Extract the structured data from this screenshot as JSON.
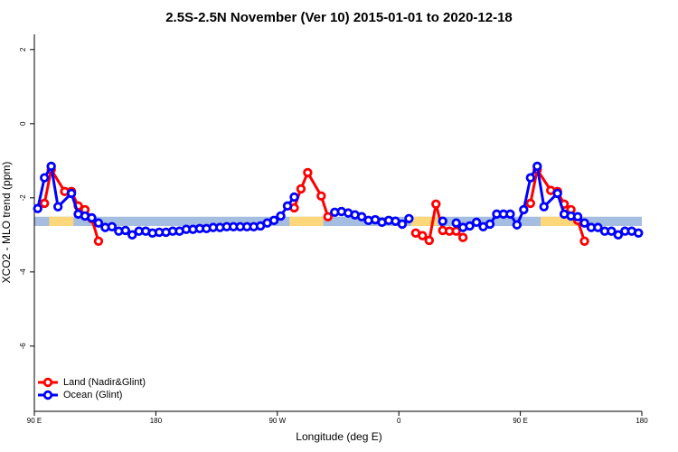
{
  "chart_data": {
    "type": "line",
    "title": "2.5S-2.5N November (Ver 10)   2015-01-01 to 2020-12-18",
    "x_label": "Longitude (deg E)",
    "y_label": "XCO2 - MLO trend (ppm)",
    "xlim": [
      90,
      540
    ],
    "ylim": [
      -7.76,
      2.41
    ],
    "xticks": [
      {
        "value": 90,
        "label": "90 E"
      },
      {
        "value": 180,
        "label": "180"
      },
      {
        "value": 270,
        "label": "90 W"
      },
      {
        "value": 360,
        "label": "0"
      },
      {
        "value": 450,
        "label": "90 E"
      },
      {
        "value": 540,
        "label": "180"
      }
    ],
    "yticks": [
      -6,
      -4,
      -2,
      0,
      2
    ],
    "legend": "bottom-left",
    "band": {
      "range": [
        -2.51,
        -2.76
      ],
      "color": "#a4bde0",
      "land_color": "#fdd77a",
      "land_segments": [
        [
          101,
          119
        ],
        [
          279,
          304
        ],
        [
          369,
          389
        ],
        [
          465,
          493
        ]
      ]
    },
    "series": [
      {
        "name": "Land (Nadir&Glint)",
        "color": "#ff0000",
        "x": [
          97.5,
          102.5,
          112.5,
          117.5,
          122.5,
          127.5,
          132.5,
          137.5,
          210,
          282.5,
          287.5,
          292.5,
          302.5,
          307.5,
          350,
          372.5,
          377.5,
          382.5,
          387.5,
          392.5,
          397.5,
          402.5,
          407.5,
          440,
          457.5,
          462.5,
          472.5,
          477.5,
          482.5,
          487.5,
          492.5,
          497.5
        ],
        "values": [
          -2.15,
          -1.24,
          -1.83,
          -1.83,
          -2.22,
          -2.32,
          -2.56,
          -3.17,
          null,
          -2.27,
          -1.76,
          -1.32,
          -1.95,
          -2.51,
          null,
          -2.95,
          -3.02,
          -3.15,
          -2.17,
          -2.88,
          -2.9,
          -2.9,
          -3.07,
          null,
          -2.15,
          -1.24,
          -1.8,
          -1.83,
          -2.17,
          -2.32,
          -2.61,
          -3.17
        ]
      },
      {
        "name": "Ocean (Glint)",
        "color": "#0000ff",
        "x": [
          92.5,
          97.5,
          102.5,
          107.5,
          117.5,
          122.5,
          127.5,
          132.5,
          137.5,
          142.5,
          147.5,
          152.5,
          157.5,
          162.5,
          167.5,
          172.5,
          177.5,
          182.5,
          187.5,
          192.5,
          197.5,
          202.5,
          207.5,
          212.5,
          217.5,
          222.5,
          227.5,
          232.5,
          237.5,
          242.5,
          247.5,
          252.5,
          257.5,
          262.5,
          267.5,
          272.5,
          277.5,
          282.5,
          292.5,
          312.5,
          317.5,
          322.5,
          327.5,
          332.5,
          337.5,
          342.5,
          347.5,
          352.5,
          357.5,
          362.5,
          367.5,
          382.5,
          392.5,
          397.5,
          402.5,
          407.5,
          412.5,
          417.5,
          422.5,
          427.5,
          432.5,
          437.5,
          442.5,
          447.5,
          452.5,
          457.5,
          462.5,
          467.5,
          477.5,
          482.5,
          487.5,
          492.5,
          497.5,
          502.5,
          507.5,
          512.5,
          517.5,
          522.5,
          527.5,
          532.5,
          537.5
        ],
        "values": [
          -2.29,
          -1.46,
          -1.15,
          -2.24,
          -1.88,
          -2.44,
          -2.49,
          -2.54,
          -2.68,
          -2.8,
          -2.78,
          -2.9,
          -2.88,
          -3.0,
          -2.9,
          -2.9,
          -2.95,
          -2.93,
          -2.93,
          -2.9,
          -2.9,
          -2.85,
          -2.85,
          -2.83,
          -2.83,
          -2.8,
          -2.8,
          -2.78,
          -2.78,
          -2.78,
          -2.78,
          -2.78,
          -2.76,
          -2.68,
          -2.61,
          -2.49,
          -2.22,
          -1.98,
          null,
          -2.39,
          -2.37,
          -2.41,
          -2.46,
          -2.51,
          -2.61,
          -2.59,
          -2.66,
          -2.61,
          -2.63,
          -2.71,
          -2.56,
          null,
          -2.63,
          null,
          -2.68,
          -2.8,
          -2.76,
          -2.66,
          -2.78,
          -2.71,
          -2.44,
          -2.44,
          -2.44,
          -2.73,
          -2.32,
          -1.46,
          -1.15,
          -2.24,
          -1.88,
          -2.44,
          -2.49,
          -2.51,
          -2.68,
          -2.8,
          -2.8,
          -2.9,
          -2.9,
          -3.0,
          -2.9,
          -2.9,
          -2.95
        ]
      }
    ]
  }
}
